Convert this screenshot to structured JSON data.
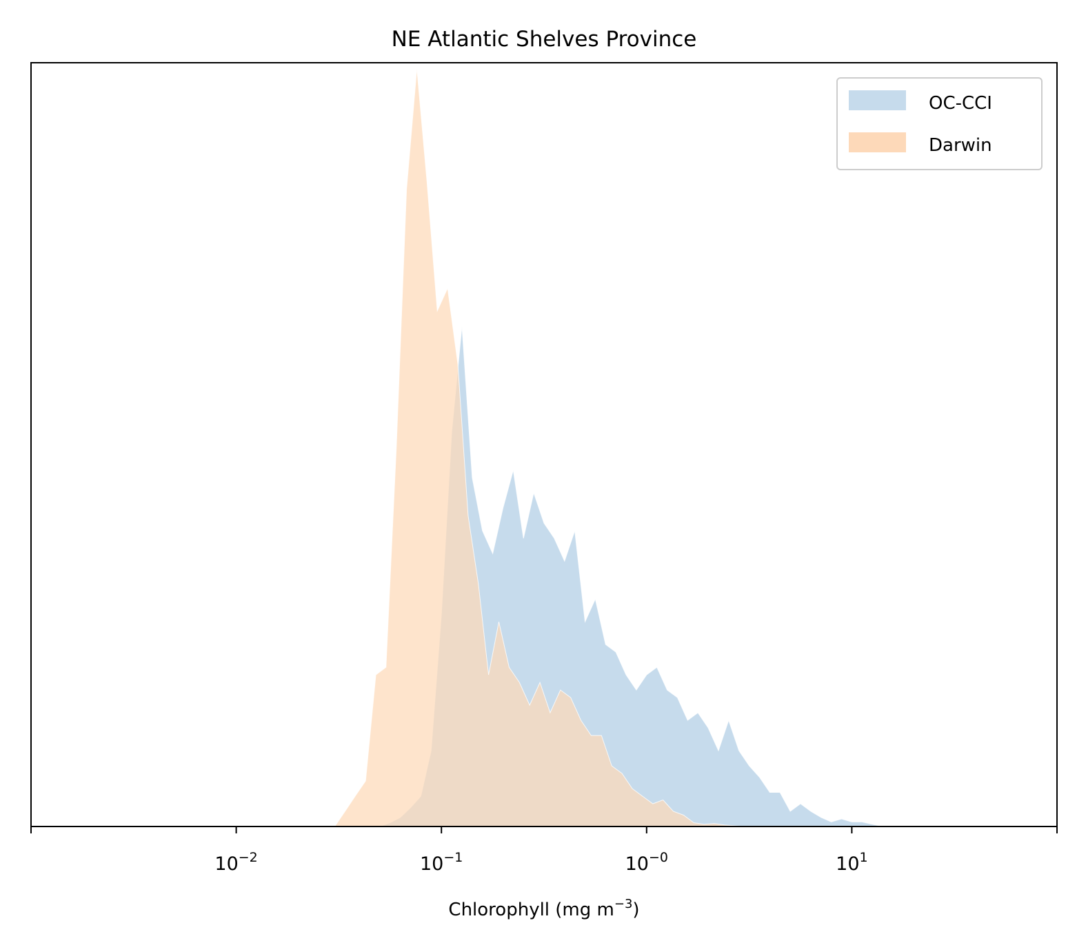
{
  "chart_data": {
    "type": "area",
    "title": "NE Atlantic Shelves Province",
    "xlabel": "Chlorophyll  (mg m",
    "xlabel_sup": "−3",
    "xlabel_tail": ")",
    "xscale": "log",
    "xlim": [
      0.001,
      100
    ],
    "ylim": [
      0,
      1
    ],
    "y_ticks_visible": false,
    "grid": false,
    "legend_position": "top-right",
    "x_ticks": [
      {
        "value": 0.001,
        "base": "",
        "exp": ""
      },
      {
        "value": 0.01,
        "base": "10",
        "exp": "−2"
      },
      {
        "value": 0.1,
        "base": "10",
        "exp": "−1"
      },
      {
        "value": 1,
        "base": "10",
        "exp": "−0"
      },
      {
        "value": 10,
        "base": "10",
        "exp": "1"
      },
      {
        "value": 100,
        "base": "",
        "exp": ""
      }
    ],
    "series": [
      {
        "name": "OC-CCI",
        "color": "#c6dbec",
        "x": [
          0.0501,
          0.0562,
          0.0631,
          0.0708,
          0.0794,
          0.0891,
          0.1,
          0.1122,
          0.1259,
          0.1413,
          0.1585,
          0.1778,
          0.1995,
          0.2239,
          0.2512,
          0.2818,
          0.3162,
          0.3548,
          0.3981,
          0.4467,
          0.5012,
          0.5623,
          0.631,
          0.7079,
          0.7943,
          0.8913,
          1.0,
          1.122,
          1.259,
          1.413,
          1.585,
          1.778,
          1.995,
          2.239,
          2.512,
          2.818,
          3.162,
          3.548,
          3.981,
          4.467,
          5.012,
          5.623,
          6.31,
          7.079,
          7.943,
          8.913,
          10.0,
          11.22,
          12.59,
          14.13
        ],
        "values": [
          0.0,
          0.005,
          0.012,
          0.025,
          0.04,
          0.1,
          0.28,
          0.52,
          0.66,
          0.46,
          0.39,
          0.36,
          0.42,
          0.47,
          0.38,
          0.44,
          0.4,
          0.38,
          0.35,
          0.39,
          0.27,
          0.3,
          0.24,
          0.23,
          0.2,
          0.18,
          0.2,
          0.21,
          0.18,
          0.17,
          0.14,
          0.15,
          0.13,
          0.1,
          0.14,
          0.1,
          0.08,
          0.065,
          0.045,
          0.045,
          0.02,
          0.03,
          0.02,
          0.012,
          0.006,
          0.01,
          0.006,
          0.006,
          0.003,
          0.0
        ]
      },
      {
        "name": "Darwin",
        "color": "#fdd9b9",
        "x": [
          0.0302,
          0.0339,
          0.038,
          0.0427,
          0.0479,
          0.0537,
          0.0603,
          0.0676,
          0.0759,
          0.0851,
          0.0955,
          0.1072,
          0.1202,
          0.1349,
          0.1514,
          0.1698,
          0.1905,
          0.2138,
          0.2399,
          0.2692,
          0.302,
          0.3388,
          0.3802,
          0.4266,
          0.4786,
          0.537,
          0.6026,
          0.6761,
          0.7586,
          0.8511,
          0.955,
          1.072,
          1.202,
          1.349,
          1.514,
          1.698,
          1.905,
          2.138,
          2.399,
          2.692,
          3.0
        ],
        "values": [
          0.0,
          0.02,
          0.04,
          0.06,
          0.2,
          0.21,
          0.5,
          0.84,
          1.0,
          0.85,
          0.68,
          0.71,
          0.61,
          0.41,
          0.32,
          0.2,
          0.27,
          0.21,
          0.19,
          0.16,
          0.19,
          0.15,
          0.18,
          0.17,
          0.14,
          0.12,
          0.12,
          0.08,
          0.07,
          0.05,
          0.04,
          0.03,
          0.035,
          0.02,
          0.015,
          0.005,
          0.003,
          0.004,
          0.002,
          0.001,
          0.0
        ]
      }
    ]
  }
}
